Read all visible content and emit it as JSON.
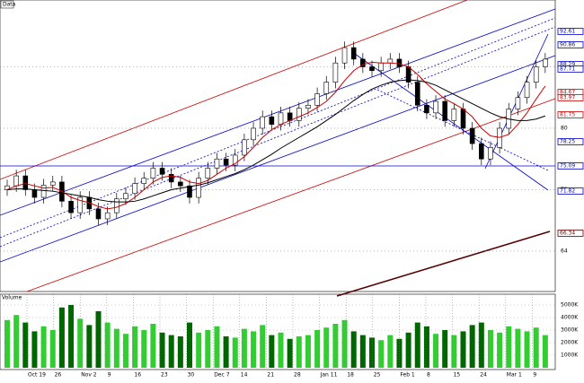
{
  "chart_data": {
    "type": "candlestick",
    "title": "Data",
    "open": [
      72,
      72.5,
      73.8,
      72,
      71,
      72.6,
      73,
      70.5,
      69,
      71,
      69.5,
      68.2,
      69,
      70.8,
      71.5,
      72.8,
      73.5,
      74.8,
      74,
      73,
      72.5,
      71,
      73.5,
      74.8,
      76,
      75.2,
      76.5,
      78.5,
      80,
      81.5,
      80.5,
      82,
      81,
      82.6,
      83,
      84.5,
      86,
      88.5,
      90.5,
      89,
      88,
      87.5,
      88.5,
      89,
      88,
      86,
      83,
      82,
      83.5,
      81,
      82.5,
      80,
      78,
      76,
      77.5,
      80,
      82.5,
      84,
      86,
      88
    ],
    "close": [
      72.5,
      73.8,
      72,
      71,
      72.6,
      73,
      70.5,
      69,
      71,
      69.5,
      68.2,
      69,
      70.8,
      71.5,
      72.8,
      73.5,
      74.8,
      74,
      73,
      72.5,
      71,
      73.5,
      74.8,
      76,
      75.2,
      76.5,
      78.5,
      80,
      81.5,
      80.5,
      82,
      81,
      82.6,
      83,
      84.5,
      86,
      88.5,
      90.5,
      89,
      88,
      87.5,
      88.5,
      89,
      88,
      86,
      83,
      82,
      83.5,
      81,
      82.5,
      80,
      78,
      76,
      77.5,
      80,
      82.5,
      84,
      86,
      88,
      89
    ],
    "high": [
      73.3,
      74.6,
      74.6,
      72.8,
      73.4,
      73.8,
      73.8,
      71.3,
      71.8,
      71.8,
      70.3,
      69.8,
      71.6,
      72.3,
      73.6,
      74.3,
      75.6,
      75.6,
      74.8,
      73.8,
      73.3,
      74.3,
      75.6,
      76.8,
      76.8,
      77.3,
      79.3,
      80.8,
      82.3,
      82.3,
      82.8,
      82.8,
      83.4,
      83.8,
      85.3,
      86.8,
      89.3,
      91.3,
      91.3,
      89.8,
      88.8,
      89.3,
      89.8,
      89.8,
      88.8,
      86.8,
      83.8,
      84.3,
      84.3,
      83.3,
      83.3,
      80.8,
      78.8,
      78.3,
      80.8,
      83.3,
      84.8,
      86.8,
      88.8,
      89.8
    ],
    "low": [
      71.2,
      71.7,
      71.2,
      70.2,
      70.2,
      71.8,
      69.7,
      68.2,
      68.2,
      68.7,
      67.4,
      67.4,
      68.2,
      70,
      70.7,
      72,
      72.7,
      73.2,
      72.2,
      71.7,
      70.2,
      70.2,
      72.7,
      74,
      74.4,
      74.4,
      75.7,
      77.7,
      79.2,
      79.7,
      79.7,
      80.2,
      80.2,
      81.8,
      82.2,
      83.7,
      85.2,
      87.7,
      88.2,
      87.2,
      86.7,
      86.7,
      87.7,
      87.2,
      85.2,
      82.2,
      81.2,
      81.2,
      80.2,
      80.2,
      79.2,
      77.2,
      75.2,
      75.2,
      76.7,
      79.2,
      81.7,
      83.2,
      85.2,
      87.2
    ],
    "ma_short": {
      "color": "#cc0000",
      "values": [
        72,
        72.5,
        72.8,
        72.5,
        72.2,
        72.3,
        71.8,
        71,
        70.6,
        70.3,
        69.8,
        69.5,
        69.7,
        70.2,
        71,
        72,
        73,
        73.6,
        73.8,
        73.6,
        73,
        72.8,
        73.2,
        74,
        74.8,
        75.4,
        76.3,
        77.5,
        78.8,
        79.8,
        80.5,
        81,
        81.5,
        82,
        82.7,
        83.5,
        84.7,
        86.2,
        87.5,
        88.3,
        88.6,
        88.5,
        88.5,
        88.4,
        88,
        87,
        85.8,
        84.8,
        83.8,
        83.2,
        82.5,
        81.5,
        80,
        79,
        78.8,
        79.2,
        80.5,
        82,
        83.8,
        85.5
      ]
    },
    "ma_long": {
      "color": "#000000",
      "values": [
        72,
        72.1,
        72.1,
        72,
        71.9,
        71.8,
        71.6,
        71.4,
        71.2,
        71,
        70.7,
        70.5,
        70.4,
        70.4,
        70.5,
        70.8,
        71.2,
        71.6,
        72,
        72.2,
        72.4,
        72.6,
        72.9,
        73.3,
        73.7,
        74.1,
        74.6,
        75.2,
        75.9,
        76.6,
        77.4,
        78.1,
        78.8,
        79.5,
        80.2,
        81,
        81.8,
        82.7,
        83.6,
        84.4,
        85.1,
        85.6,
        86,
        86.2,
        86.3,
        86.2,
        86,
        85.6,
        85,
        84.4,
        83.8,
        83.2,
        82.6,
        82,
        81.5,
        81.2,
        81,
        81,
        81.2,
        81.6
      ]
    },
    "ylim": [
      58.74,
      96.7
    ],
    "yticks": [
      64,
      72,
      80,
      88
    ],
    "marker_values": [
      92.61,
      90.86,
      88.29,
      87.71,
      84.67,
      83.97,
      81.75,
      78.25,
      75.09,
      71.82,
      66.34
    ],
    "marker_colors": [
      "#0000cc",
      "#0000cc",
      "#0000cc",
      "#0000cc",
      "#cc0000",
      "#cc0000",
      "#cc0000",
      "#0000cc",
      "#0000cc",
      "#0000cc",
      "#660000"
    ],
    "x_labels": [
      "Oct 19",
      "26",
      "Nov 2",
      "9",
      "16",
      "23",
      "30",
      "Dec 7",
      "14",
      "21",
      "28",
      "Jan 11",
      "18",
      "25",
      "Feb 1",
      "8",
      "15",
      "24",
      "Mar 1",
      "9"
    ],
    "volume": {
      "name": "Volume",
      "up_color": "#33cc33",
      "down_color": "#006600",
      "values": [
        3800,
        4200,
        3600,
        2900,
        3300,
        3000,
        4800,
        5000,
        3900,
        3400,
        4500,
        3600,
        3100,
        2700,
        3300,
        3000,
        3500,
        2800,
        2600,
        2500,
        3600,
        2800,
        3000,
        3300,
        2500,
        2400,
        3100,
        2900,
        3400,
        2600,
        2800,
        2300,
        2500,
        2600,
        3000,
        3200,
        3500,
        3800,
        2900,
        2600,
        2400,
        2200,
        2600,
        2300,
        2800,
        3600,
        3300,
        2700,
        3000,
        2600,
        2900,
        3400,
        3600,
        3000,
        2800,
        3300,
        3100,
        2900,
        3200,
        2600
      ],
      "ylim": [
        0,
        5500
      ],
      "yticks": [
        {
          "value": 1000,
          "label": "1000K"
        },
        {
          "value": 2000,
          "label": "2000K"
        },
        {
          "value": 3000,
          "label": "3000K"
        },
        {
          "value": 4000,
          "label": "4000K"
        },
        {
          "value": 5000,
          "label": "5000K"
        }
      ]
    }
  }
}
